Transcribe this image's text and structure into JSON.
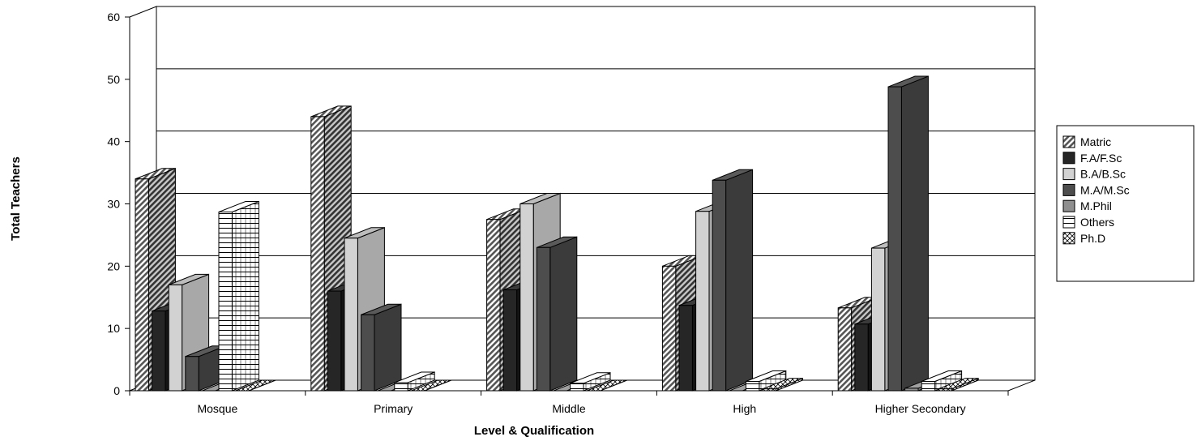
{
  "chart_data": {
    "type": "bar",
    "title": "",
    "xlabel": "Level & Qualification",
    "ylabel": "Total Teachers",
    "ylim": [
      0,
      60
    ],
    "yticks": [
      0,
      10,
      20,
      30,
      40,
      50,
      60
    ],
    "grid": true,
    "three_d": true,
    "legend_position": "right",
    "categories": [
      "Mosque",
      "Primary",
      "Middle",
      "High",
      "Higher Secondary"
    ],
    "series": [
      {
        "name": "Matric",
        "pattern": "diagonal-hatch",
        "color": "#8c8c8c",
        "values": [
          34,
          44,
          27.5,
          20,
          13.3
        ]
      },
      {
        "name": "F.A/F.Sc",
        "pattern": "solid",
        "color": "#262626",
        "values": [
          12.8,
          16,
          16.2,
          13.7,
          10.7
        ]
      },
      {
        "name": "B.A/B.Sc",
        "pattern": "solid",
        "color": "#d2d2d2",
        "values": [
          17,
          24.5,
          30,
          28.8,
          22.9
        ]
      },
      {
        "name": "M.A/M.Sc",
        "pattern": "solid",
        "color": "#4d4d4d",
        "values": [
          5.5,
          12.2,
          23,
          33.8,
          48.8
        ]
      },
      {
        "name": "M.Phil",
        "pattern": "solid",
        "color": "#8f8f8f",
        "values": [
          0,
          0,
          0,
          0,
          0.4
        ]
      },
      {
        "name": "Others",
        "pattern": "horizontal-lines",
        "color": "#ffffff",
        "values": [
          28.7,
          1.3,
          1.2,
          1.5,
          1.5
        ]
      },
      {
        "name": "Ph.D",
        "pattern": "cross-hatch",
        "color": "#ffffff",
        "values": [
          0,
          0,
          0,
          0.3,
          0.3
        ]
      }
    ]
  }
}
